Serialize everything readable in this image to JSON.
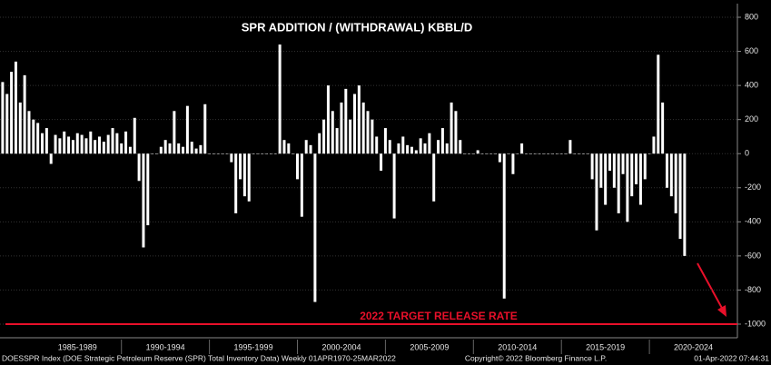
{
  "chart_data": {
    "type": "bar",
    "title": "SPR ADDITION / (WITHDRAWAL) KBBL/D",
    "x": [
      1983.25,
      1983.5,
      1983.75,
      1984,
      1984.25,
      1984.5,
      1984.75,
      1985,
      1985.25,
      1985.5,
      1985.75,
      1986,
      1986.25,
      1986.5,
      1986.75,
      1987,
      1987.25,
      1987.5,
      1987.75,
      1988,
      1988.25,
      1988.5,
      1988.75,
      1989,
      1989.25,
      1989.5,
      1989.75,
      1990,
      1990.25,
      1990.5,
      1990.75,
      1991,
      1991.25,
      1991.5,
      1991.75,
      1992,
      1992.25,
      1992.5,
      1992.75,
      1993,
      1993.25,
      1993.5,
      1993.75,
      1994,
      1994.25,
      1994.5,
      1994.75,
      1995,
      1995.25,
      1995.5,
      1995.75,
      1996,
      1996.25,
      1996.5,
      1996.75,
      1997,
      1997.25,
      1997.5,
      1997.75,
      1998,
      1998.25,
      1998.5,
      1998.75,
      1999,
      1999.25,
      1999.5,
      1999.75,
      2000,
      2000.25,
      2000.5,
      2000.75,
      2001,
      2001.25,
      2001.5,
      2001.75,
      2002,
      2002.25,
      2002.5,
      2002.75,
      2003,
      2003.25,
      2003.5,
      2003.75,
      2004,
      2004.25,
      2004.5,
      2004.75,
      2005,
      2005.25,
      2005.5,
      2005.75,
      2006,
      2006.25,
      2006.5,
      2006.75,
      2007,
      2007.25,
      2007.5,
      2007.75,
      2008,
      2008.25,
      2008.5,
      2008.75,
      2009,
      2009.25,
      2009.5,
      2009.75,
      2010,
      2010.25,
      2010.5,
      2010.75,
      2011,
      2011.25,
      2011.5,
      2011.75,
      2012,
      2012.25,
      2012.5,
      2012.75,
      2013,
      2013.25,
      2013.5,
      2013.75,
      2014,
      2014.25,
      2014.5,
      2014.75,
      2015,
      2015.25,
      2015.5,
      2015.75,
      2016,
      2016.25,
      2016.5,
      2016.75,
      2017,
      2017.25,
      2017.5,
      2017.75,
      2018,
      2018.25,
      2018.5,
      2018.75,
      2019,
      2019.25,
      2019.5,
      2019.75,
      2020,
      2020.25,
      2020.5,
      2020.75,
      2021,
      2021.25,
      2021.5,
      2021.75,
      2022
    ],
    "values": [
      420,
      350,
      480,
      540,
      300,
      460,
      250,
      200,
      180,
      120,
      150,
      -60,
      110,
      90,
      130,
      100,
      80,
      120,
      110,
      90,
      130,
      80,
      100,
      70,
      110,
      150,
      120,
      60,
      130,
      40,
      210,
      -160,
      -550,
      -420,
      0,
      0,
      40,
      80,
      60,
      250,
      60,
      40,
      280,
      70,
      30,
      50,
      290,
      0,
      0,
      0,
      0,
      0,
      -50,
      -350,
      -150,
      -250,
      -280,
      0,
      0,
      0,
      0,
      0,
      0,
      640,
      80,
      60,
      0,
      -150,
      -370,
      80,
      50,
      -870,
      120,
      200,
      400,
      250,
      150,
      300,
      380,
      200,
      350,
      400,
      300,
      250,
      200,
      100,
      -100,
      150,
      80,
      -380,
      60,
      100,
      50,
      40,
      20,
      90,
      60,
      120,
      -280,
      80,
      150,
      60,
      300,
      250,
      80,
      0,
      0,
      0,
      20,
      0,
      0,
      0,
      0,
      -50,
      -850,
      0,
      -120,
      0,
      60,
      0,
      0,
      0,
      0,
      0,
      0,
      0,
      0,
      0,
      0,
      80,
      0,
      0,
      0,
      0,
      -150,
      -450,
      -200,
      -300,
      -100,
      -200,
      -350,
      -120,
      -400,
      -250,
      -180,
      -300,
      -150,
      0,
      100,
      580,
      300,
      -200,
      -250,
      -350,
      -500,
      -600
    ],
    "color": "#ffffff",
    "xlim": [
      1983.1,
      2025
    ],
    "xticks": [
      {
        "value": 1987.5,
        "label": "1985-1989"
      },
      {
        "value": 1992.5,
        "label": "1990-1994"
      },
      {
        "value": 1997.5,
        "label": "1995-1999"
      },
      {
        "value": 2002.5,
        "label": "2000-2004"
      },
      {
        "value": 2007.5,
        "label": "2005-2009"
      },
      {
        "value": 2012.5,
        "label": "2010-2014"
      },
      {
        "value": 2017.5,
        "label": "2015-2019"
      },
      {
        "value": 2022.5,
        "label": "2020-2024"
      }
    ],
    "ylim": [
      -1080,
      880
    ],
    "yticks": [
      -1000,
      -800,
      -600,
      -400,
      -200,
      0,
      200,
      400,
      600,
      800
    ],
    "reference_line": {
      "value": -1000,
      "label": "2022 TARGET RELEASE RATE",
      "color": "#e8102a"
    },
    "footer": {
      "left": "DOESSPR Index (DOE Strategic Petroleum Reserve (SPR) Total Inventory Data)  Weekly 01APR1970-25MAR2022",
      "center": "Copyright© 2022 Bloomberg Finance L.P.",
      "right": "01-Apr-2022 07:44:31"
    }
  }
}
